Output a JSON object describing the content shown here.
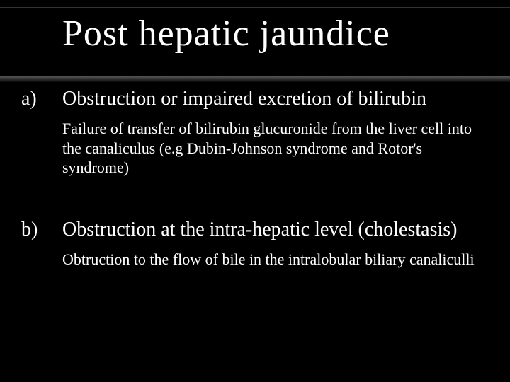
{
  "slide": {
    "title": "Post hepatic jaundice",
    "background_color": "#000000",
    "text_color": "#ffffff",
    "title_fontsize": 52,
    "heading_fontsize": 28,
    "body_fontsize": 22,
    "font_family": "Georgia, serif",
    "gradient_bar": {
      "top_color": "#555555",
      "bottom_color": "#0a0a0a"
    },
    "items": [
      {
        "marker": "a)",
        "heading": "Obstruction or impaired excretion of bilirubin",
        "body": "Failure of transfer of bilirubin glucuronide from the liver cell into the canaliculus (e.g Dubin-Johnson syndrome and Rotor's syndrome)"
      },
      {
        "marker": "b)",
        "heading": "Obstruction at the intra-hepatic level (cholestasis)",
        "body": "Obtruction to the flow of bile in the intralobular biliary canaliculli"
      }
    ]
  }
}
